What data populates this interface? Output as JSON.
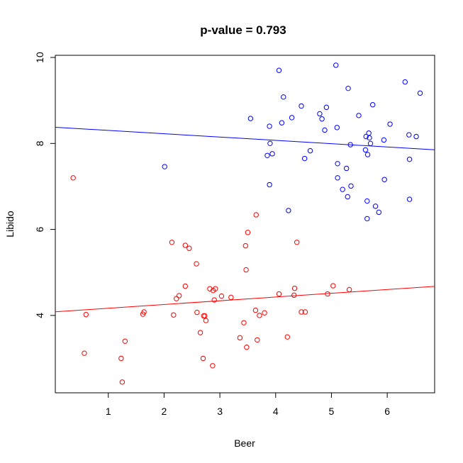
{
  "chart_data": {
    "type": "scatter",
    "title": "p-value = 0.793",
    "xlabel": "Beer",
    "ylabel": "Libido",
    "xlim": [
      0.05,
      6.85
    ],
    "ylim": [
      2.2,
      10.05
    ],
    "xticks": [
      1,
      2,
      3,
      4,
      5,
      6
    ],
    "yticks": [
      4,
      6,
      8,
      10
    ],
    "grid": false,
    "legend": "none",
    "series": [
      {
        "color": "#0000ff",
        "marker": "open-circle",
        "points": [
          [
            2.01,
            7.46
          ],
          [
            3.55,
            8.58
          ],
          [
            3.85,
            7.72
          ],
          [
            3.89,
            8.4
          ],
          [
            3.9,
            8.0
          ],
          [
            3.94,
            7.76
          ],
          [
            3.89,
            7.04
          ],
          [
            4.06,
            9.7
          ],
          [
            4.11,
            8.48
          ],
          [
            4.14,
            9.08
          ],
          [
            4.23,
            6.44
          ],
          [
            4.29,
            8.6
          ],
          [
            4.46,
            8.87
          ],
          [
            4.52,
            7.65
          ],
          [
            4.62,
            7.83
          ],
          [
            4.79,
            8.69
          ],
          [
            4.83,
            8.57
          ],
          [
            4.88,
            8.31
          ],
          [
            4.91,
            8.84
          ],
          [
            5.08,
            9.82
          ],
          [
            5.1,
            8.37
          ],
          [
            5.11,
            7.53
          ],
          [
            5.11,
            7.2
          ],
          [
            5.2,
            6.93
          ],
          [
            5.27,
            7.42
          ],
          [
            5.29,
            6.76
          ],
          [
            5.3,
            9.28
          ],
          [
            5.34,
            7.97
          ],
          [
            5.35,
            7.01
          ],
          [
            5.49,
            8.65
          ],
          [
            5.61,
            7.85
          ],
          [
            5.62,
            8.16
          ],
          [
            5.64,
            6.66
          ],
          [
            5.64,
            6.25
          ],
          [
            5.65,
            7.74
          ],
          [
            5.67,
            8.24
          ],
          [
            5.68,
            8.13
          ],
          [
            5.7,
            8.0
          ],
          [
            5.74,
            8.9
          ],
          [
            5.79,
            6.54
          ],
          [
            5.85,
            6.4
          ],
          [
            5.94,
            8.08
          ],
          [
            5.95,
            7.16
          ],
          [
            6.05,
            8.45
          ],
          [
            6.32,
            9.43
          ],
          [
            6.39,
            8.2
          ],
          [
            6.4,
            7.63
          ],
          [
            6.4,
            6.7
          ],
          [
            6.52,
            8.16
          ],
          [
            6.59,
            9.17
          ]
        ],
        "fit": {
          "intercept": 8.38,
          "slope": -0.077
        }
      },
      {
        "color": "#ff0000",
        "marker": "open-circle",
        "points": [
          [
            0.37,
            7.2
          ],
          [
            0.57,
            3.12
          ],
          [
            0.6,
            4.02
          ],
          [
            1.23,
            3.0
          ],
          [
            1.25,
            2.45
          ],
          [
            1.3,
            3.4
          ],
          [
            1.62,
            4.03
          ],
          [
            1.64,
            4.08
          ],
          [
            2.14,
            5.7
          ],
          [
            2.17,
            4.01
          ],
          [
            2.22,
            4.39
          ],
          [
            2.27,
            4.46
          ],
          [
            2.38,
            4.68
          ],
          [
            2.38,
            5.63
          ],
          [
            2.45,
            5.56
          ],
          [
            2.58,
            5.2
          ],
          [
            2.59,
            4.07
          ],
          [
            2.65,
            3.6
          ],
          [
            2.7,
            3.0
          ],
          [
            2.71,
            3.99
          ],
          [
            2.73,
            3.99
          ],
          [
            2.75,
            3.88
          ],
          [
            2.82,
            4.62
          ],
          [
            2.87,
            2.83
          ],
          [
            2.88,
            4.58
          ],
          [
            2.9,
            4.36
          ],
          [
            2.92,
            4.62
          ],
          [
            3.03,
            4.45
          ],
          [
            3.2,
            4.42
          ],
          [
            3.36,
            3.48
          ],
          [
            3.43,
            3.83
          ],
          [
            3.46,
            5.62
          ],
          [
            3.47,
            5.06
          ],
          [
            3.48,
            3.26
          ],
          [
            3.5,
            5.93
          ],
          [
            3.64,
            4.12
          ],
          [
            3.65,
            6.34
          ],
          [
            3.67,
            3.43
          ],
          [
            3.71,
            4.0
          ],
          [
            3.8,
            4.06
          ],
          [
            4.06,
            4.5
          ],
          [
            4.21,
            3.5
          ],
          [
            4.33,
            4.47
          ],
          [
            4.34,
            4.63
          ],
          [
            4.38,
            5.7
          ],
          [
            4.46,
            4.08
          ],
          [
            4.53,
            4.08
          ],
          [
            4.93,
            4.5
          ],
          [
            5.03,
            4.69
          ],
          [
            5.32,
            4.6
          ]
        ],
        "fit": {
          "intercept": 4.08,
          "slope": 0.087
        }
      }
    ]
  }
}
